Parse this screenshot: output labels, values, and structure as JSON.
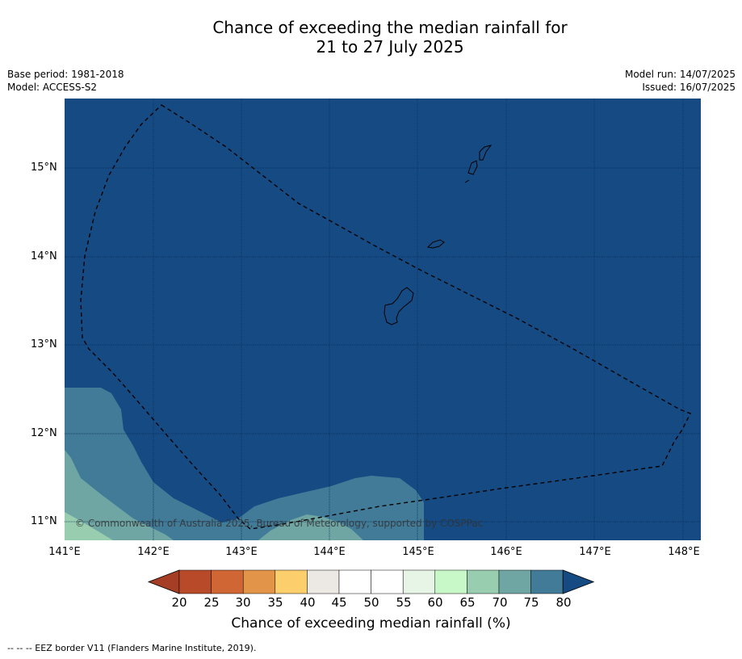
{
  "title": {
    "line1": "Chance of exceeding the median rainfall for",
    "line2": "21 to 27 July 2025"
  },
  "meta": {
    "base_period": "Base period: 1981-2018",
    "model": "Model: ACCESS-S2",
    "model_run": "Model run: 14/07/2025",
    "issued": "Issued: 16/07/2025"
  },
  "map": {
    "copyright": "© Commonwealth of Australia 2025, Bureau of Meteorology, supported by COSPPac",
    "lat_labels": [
      "15°N",
      "14°N",
      "13°N",
      "12°N",
      "11°N"
    ],
    "lon_labels": [
      "141°E",
      "142°E",
      "143°E",
      "144°E",
      "145°E",
      "146°E",
      "147°E",
      "148°E"
    ],
    "background_color": "#154a83"
  },
  "colorbar": {
    "title": "Chance of exceeding median rainfall (%)",
    "ticks": [
      "20",
      "25",
      "30",
      "35",
      "40",
      "45",
      "50",
      "55",
      "60",
      "65",
      "70",
      "75",
      "80"
    ],
    "colors": [
      "#a53e24",
      "#b84a2a",
      "#d06634",
      "#e29548",
      "#fccf6c",
      "#ece8e4",
      "#ffffff",
      "#ffffff",
      "#e6f5e6",
      "#c8f8c8",
      "#99cdb0",
      "#6fa5a3",
      "#427b98",
      "#154a83"
    ]
  },
  "footnote": "--  --  -- EEZ border V11 (Flanders Marine Institute, 2019)."
}
